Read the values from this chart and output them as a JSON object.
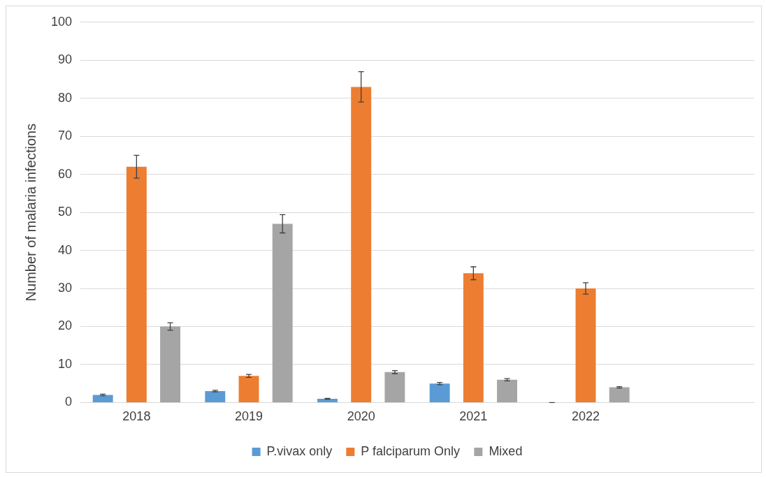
{
  "chart_data": {
    "type": "bar",
    "ylabel": "Number of malaria infections",
    "categories": [
      "2018",
      "2019",
      "2020",
      "2021",
      "2022",
      null
    ],
    "series": [
      {
        "name": "P.vivax only",
        "color": "#5b9bd5",
        "values": [
          2,
          3,
          1,
          5,
          0,
          null
        ],
        "errors": [
          0.2,
          0.2,
          0.1,
          0.3,
          0,
          null
        ]
      },
      {
        "name": "P falciparum Only",
        "color": "#ed7d31",
        "values": [
          62,
          7,
          83,
          34,
          30,
          null
        ],
        "errors": [
          3,
          0.4,
          4,
          1.7,
          1.5,
          null
        ]
      },
      {
        "name": "Mixed",
        "color": "#a5a5a5",
        "values": [
          20,
          47,
          8,
          6,
          4,
          null
        ],
        "errors": [
          1,
          2.4,
          0.4,
          0.3,
          0.2,
          null
        ]
      }
    ],
    "ylim": [
      0,
      100
    ],
    "yticks": [
      0,
      10,
      20,
      30,
      40,
      50,
      60,
      70,
      80,
      90,
      100
    ],
    "grid": "y",
    "legend": "bottom"
  }
}
